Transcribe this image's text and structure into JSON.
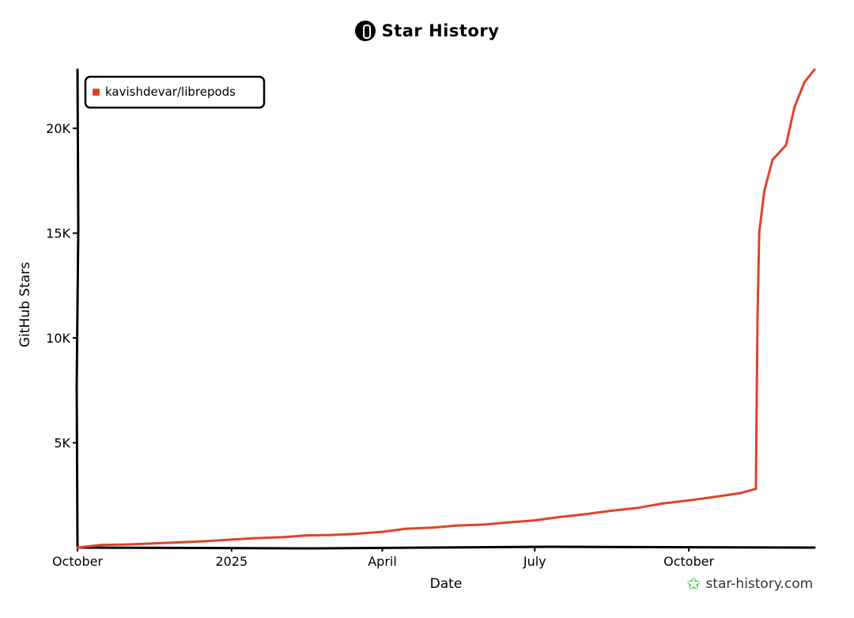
{
  "title": "Star History",
  "watermark": {
    "text": "star-history.com",
    "icon": "star-outline-icon",
    "icon_color": "#18b818"
  },
  "chart_data": {
    "type": "line",
    "title": "Star History",
    "xlabel": "Date",
    "ylabel": "GitHub Stars",
    "x_ticks": [
      "October",
      "2025",
      "April",
      "July",
      "October"
    ],
    "x_tick_dates": [
      "2024-10-01",
      "2025-01-01",
      "2025-04-01",
      "2025-07-01",
      "2025-10-01"
    ],
    "y_ticks": [
      "5K",
      "10K",
      "15K",
      "20K"
    ],
    "y_tick_values": [
      5000,
      10000,
      15000,
      20000
    ],
    "xlim": [
      "2024-10-01",
      "2025-12-15"
    ],
    "ylim": [
      0,
      22800
    ],
    "grid": false,
    "legend_position": "top-left",
    "series": [
      {
        "name": "kavishdevar/librepods",
        "color": "#dd4528",
        "points": [
          [
            "2024-10-01",
            0
          ],
          [
            "2024-10-15",
            120
          ],
          [
            "2024-11-01",
            150
          ],
          [
            "2024-11-15",
            200
          ],
          [
            "2024-12-01",
            250
          ],
          [
            "2024-12-15",
            300
          ],
          [
            "2025-01-01",
            380
          ],
          [
            "2025-01-15",
            450
          ],
          [
            "2025-02-01",
            500
          ],
          [
            "2025-02-15",
            580
          ],
          [
            "2025-03-01",
            600
          ],
          [
            "2025-03-15",
            650
          ],
          [
            "2025-04-01",
            750
          ],
          [
            "2025-04-15",
            900
          ],
          [
            "2025-05-01",
            950
          ],
          [
            "2025-05-15",
            1050
          ],
          [
            "2025-06-01",
            1100
          ],
          [
            "2025-06-15",
            1200
          ],
          [
            "2025-07-01",
            1300
          ],
          [
            "2025-07-15",
            1450
          ],
          [
            "2025-08-01",
            1600
          ],
          [
            "2025-08-15",
            1750
          ],
          [
            "2025-09-01",
            1900
          ],
          [
            "2025-09-15",
            2100
          ],
          [
            "2025-10-01",
            2250
          ],
          [
            "2025-10-15",
            2400
          ],
          [
            "2025-11-01",
            2600
          ],
          [
            "2025-11-10",
            2800
          ],
          [
            "2025-11-11",
            11000
          ],
          [
            "2025-11-12",
            15000
          ],
          [
            "2025-11-15",
            17000
          ],
          [
            "2025-11-20",
            18500
          ],
          [
            "2025-11-28",
            19200
          ],
          [
            "2025-12-03",
            21000
          ],
          [
            "2025-12-09",
            22200
          ],
          [
            "2025-12-15",
            22800
          ]
        ]
      }
    ]
  }
}
